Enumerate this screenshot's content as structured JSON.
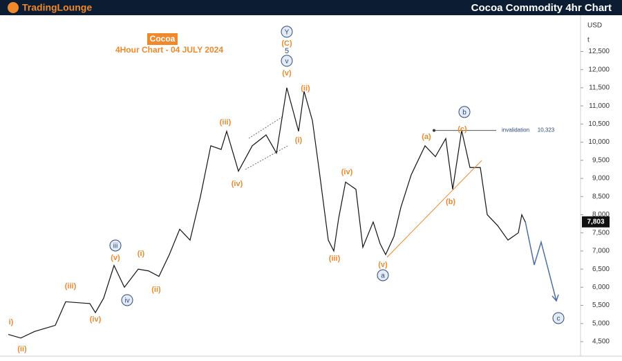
{
  "header": {
    "logo": "TradingLounge",
    "title": "Cocoa Commodity 4hr Chart"
  },
  "chart_data": {
    "type": "line",
    "title": "Cocoa",
    "subtitle": "4Hour Chart - 04 JULY 2024",
    "currency": "USD",
    "axis_menu": "t",
    "xlim": [
      0,
      840
    ],
    "ylim": [
      4100,
      13500
    ],
    "yticks": [
      {
        "value": 4500,
        "label": "4,500"
      },
      {
        "value": 5000,
        "label": "5,000"
      },
      {
        "value": 5500,
        "label": "5,500"
      },
      {
        "value": 6000,
        "label": "6,000"
      },
      {
        "value": 6500,
        "label": "6,500"
      },
      {
        "value": 7000,
        "label": "7,000"
      },
      {
        "value": 7500,
        "label": "7,500"
      },
      {
        "value": 8000,
        "label": "8,000"
      },
      {
        "value": 8500,
        "label": "8,500"
      },
      {
        "value": 9000,
        "label": "9,000"
      },
      {
        "value": 9500,
        "label": "9,500"
      },
      {
        "value": 10000,
        "label": "10,000"
      },
      {
        "value": 10500,
        "label": "10,500"
      },
      {
        "value": 11000,
        "label": "11,000"
      },
      {
        "value": 11500,
        "label": "11,500"
      },
      {
        "value": 12000,
        "label": "12,000"
      },
      {
        "value": 12500,
        "label": "12,500"
      }
    ],
    "series": [
      {
        "color": "#111111",
        "x": [
          12,
          30,
          50,
          80,
          95,
          130,
          138,
          150,
          165,
          180,
          200,
          215,
          230,
          245,
          260,
          275,
          290,
          305,
          320,
          328,
          345,
          365,
          385,
          400,
          415,
          425,
          432,
          440,
          452,
          462,
          475,
          483,
          490,
          500,
          515,
          525,
          540,
          550,
          558,
          570,
          580,
          595,
          615,
          630,
          645,
          655,
          668,
          680,
          695,
          705,
          720,
          735,
          750,
          755,
          760
        ],
        "values": [
          4700,
          4600,
          4780,
          4950,
          5600,
          5550,
          5300,
          5700,
          6600,
          6000,
          6500,
          6450,
          6300,
          6900,
          7600,
          7300,
          8500,
          9900,
          9800,
          10300,
          9200,
          9900,
          10200,
          9700,
          11500,
          10800,
          10300,
          11400,
          10600,
          9200,
          7300,
          7000,
          7900,
          8900,
          8700,
          7100,
          7800,
          7200,
          6900,
          7400,
          8200,
          9100,
          9900,
          9600,
          10100,
          8700,
          10323,
          9300,
          9300,
          8000,
          7700,
          7300,
          7500,
          8000,
          7803
        ]
      }
    ],
    "last": {
      "value": 7803,
      "label": "7,803"
    },
    "invalidation": {
      "label": "invalidation",
      "value": 10323,
      "value_label": "10,323",
      "x": [
        628,
        718
      ]
    },
    "trendline": {
      "color": "#f0882c",
      "x": [
        560,
        697
      ],
      "y": [
        6827,
        9496
      ]
    },
    "annotations": [
      {
        "text": "i)",
        "x": 16,
        "y": 5054,
        "style": "orange"
      },
      {
        "text": "(ii)",
        "x": 32,
        "y": 4310,
        "style": "orange"
      },
      {
        "text": "(iii)",
        "x": 102,
        "y": 6045,
        "style": "orange"
      },
      {
        "text": "(iv)",
        "x": 138,
        "y": 5130,
        "style": "orange"
      },
      {
        "text": "(v)",
        "x": 167,
        "y": 6827,
        "style": "orange"
      },
      {
        "text": "iii",
        "x": 167,
        "y": 7151,
        "style": "circle"
      },
      {
        "text": "iv",
        "x": 184,
        "y": 5645,
        "style": "circle"
      },
      {
        "text": "(i)",
        "x": 204,
        "y": 6941,
        "style": "orange"
      },
      {
        "text": "(ii)",
        "x": 226,
        "y": 5950,
        "style": "orange"
      },
      {
        "text": "(iii)",
        "x": 326,
        "y": 10565,
        "style": "orange"
      },
      {
        "text": "(iv)",
        "x": 343,
        "y": 8868,
        "style": "orange"
      },
      {
        "text": "(i)",
        "x": 432,
        "y": 10069,
        "style": "orange"
      },
      {
        "text": "(ii)",
        "x": 442,
        "y": 11500,
        "style": "orange"
      },
      {
        "text": "(v)",
        "x": 415,
        "y": 11919,
        "style": "orange"
      },
      {
        "text": "v",
        "x": 415,
        "y": 12243,
        "style": "circle"
      },
      {
        "text": "5",
        "x": 415,
        "y": 12529,
        "style": "plain"
      },
      {
        "text": "(C)",
        "x": 415,
        "y": 12739,
        "style": "orange"
      },
      {
        "text": "Y",
        "x": 415,
        "y": 13044,
        "style": "circle"
      },
      {
        "text": "(iii)",
        "x": 484,
        "y": 6808,
        "style": "orange"
      },
      {
        "text": "(iv)",
        "x": 502,
        "y": 9192,
        "style": "orange"
      },
      {
        "text": "(v)",
        "x": 554,
        "y": 6636,
        "style": "orange"
      },
      {
        "text": "a",
        "x": 554,
        "y": 6331,
        "style": "circle"
      },
      {
        "text": "(a)",
        "x": 617,
        "y": 10164,
        "style": "orange"
      },
      {
        "text": "(b)",
        "x": 652,
        "y": 8372,
        "style": "orange"
      },
      {
        "text": "(c)",
        "x": 669,
        "y": 10374,
        "style": "orange"
      },
      {
        "text": "b",
        "x": 672,
        "y": 10832,
        "style": "circle"
      },
      {
        "text": "c",
        "x": 808,
        "y": 5149,
        "style": "circle"
      }
    ]
  }
}
